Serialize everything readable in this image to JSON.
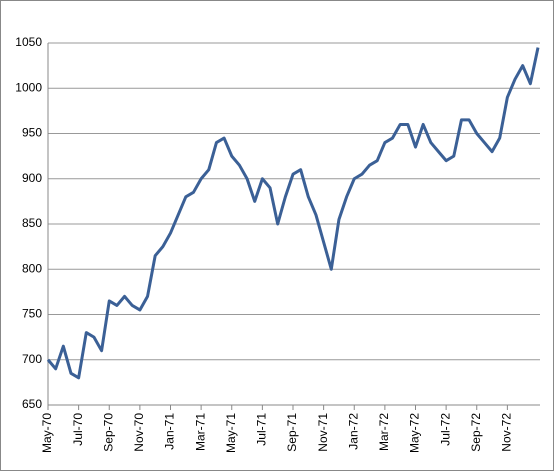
{
  "chart_data": {
    "type": "line",
    "categories": [
      "May-70",
      null,
      null,
      null,
      "Jul-70",
      null,
      null,
      null,
      "Sep-70",
      null,
      null,
      null,
      "Nov-70",
      null,
      null,
      null,
      "Jan-71",
      null,
      null,
      null,
      "Mar-71",
      null,
      null,
      null,
      "May-71",
      null,
      null,
      null,
      "Jul-71",
      null,
      null,
      null,
      "Sep-71",
      null,
      null,
      null,
      "Nov-71",
      null,
      null,
      null,
      "Jan-72",
      null,
      null,
      null,
      "Mar-72",
      null,
      null,
      null,
      "May-72",
      null,
      null,
      null,
      "Jul-72",
      null,
      null,
      null,
      "Sep-72",
      null,
      null,
      null,
      "Nov-72",
      null,
      null,
      null,
      null
    ],
    "series": [
      {
        "color": "#3b6096",
        "values": [
          700,
          690,
          715,
          685,
          680,
          730,
          725,
          710,
          765,
          760,
          770,
          760,
          755,
          770,
          815,
          825,
          840,
          860,
          880,
          885,
          900,
          910,
          940,
          945,
          925,
          915,
          900,
          875,
          900,
          890,
          850,
          880,
          905,
          910,
          880,
          860,
          830,
          800,
          855,
          880,
          900,
          905,
          915,
          920,
          940,
          945,
          960,
          960,
          935,
          960,
          940,
          930,
          920,
          925,
          965,
          965,
          950,
          940,
          930,
          945,
          990,
          1010,
          1025,
          1005,
          1045
        ]
      }
    ],
    "ylim": [
      650,
      1050
    ],
    "yticks": [
      650,
      700,
      750,
      800,
      850,
      900,
      950,
      1000,
      1050
    ],
    "grid": true
  }
}
